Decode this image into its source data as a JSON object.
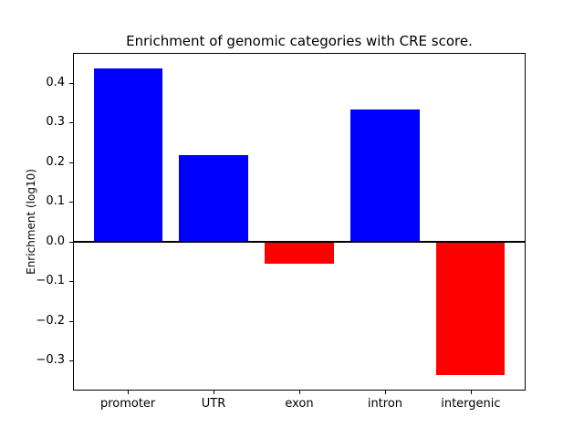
{
  "chart_data": {
    "type": "bar",
    "title": "Enrichment of genomic categories with CRE score.",
    "xlabel": "",
    "ylabel": "Enrichment (log10)",
    "categories": [
      "promoter",
      "UTR",
      "exon",
      "intron",
      "intergenic"
    ],
    "values": [
      0.437,
      0.218,
      -0.055,
      0.333,
      -0.335
    ],
    "bar_colors": [
      "#0000ff",
      "#0000ff",
      "#ff0000",
      "#0000ff",
      "#ff0000"
    ],
    "positive_color": "#0000ff",
    "negative_color": "#ff0000",
    "ylim": [
      -0.375,
      0.475
    ],
    "yticks": [
      -0.3,
      -0.2,
      -0.1,
      0.0,
      0.1,
      0.2,
      0.3,
      0.4
    ],
    "ytick_labels": [
      "−0.3",
      "−0.2",
      "−0.1",
      "0.0",
      "0.1",
      "0.2",
      "0.3",
      "0.4"
    ],
    "grid": false,
    "legend": null,
    "zero_line": true,
    "axis_color": "#000000",
    "background": "#ffffff"
  }
}
